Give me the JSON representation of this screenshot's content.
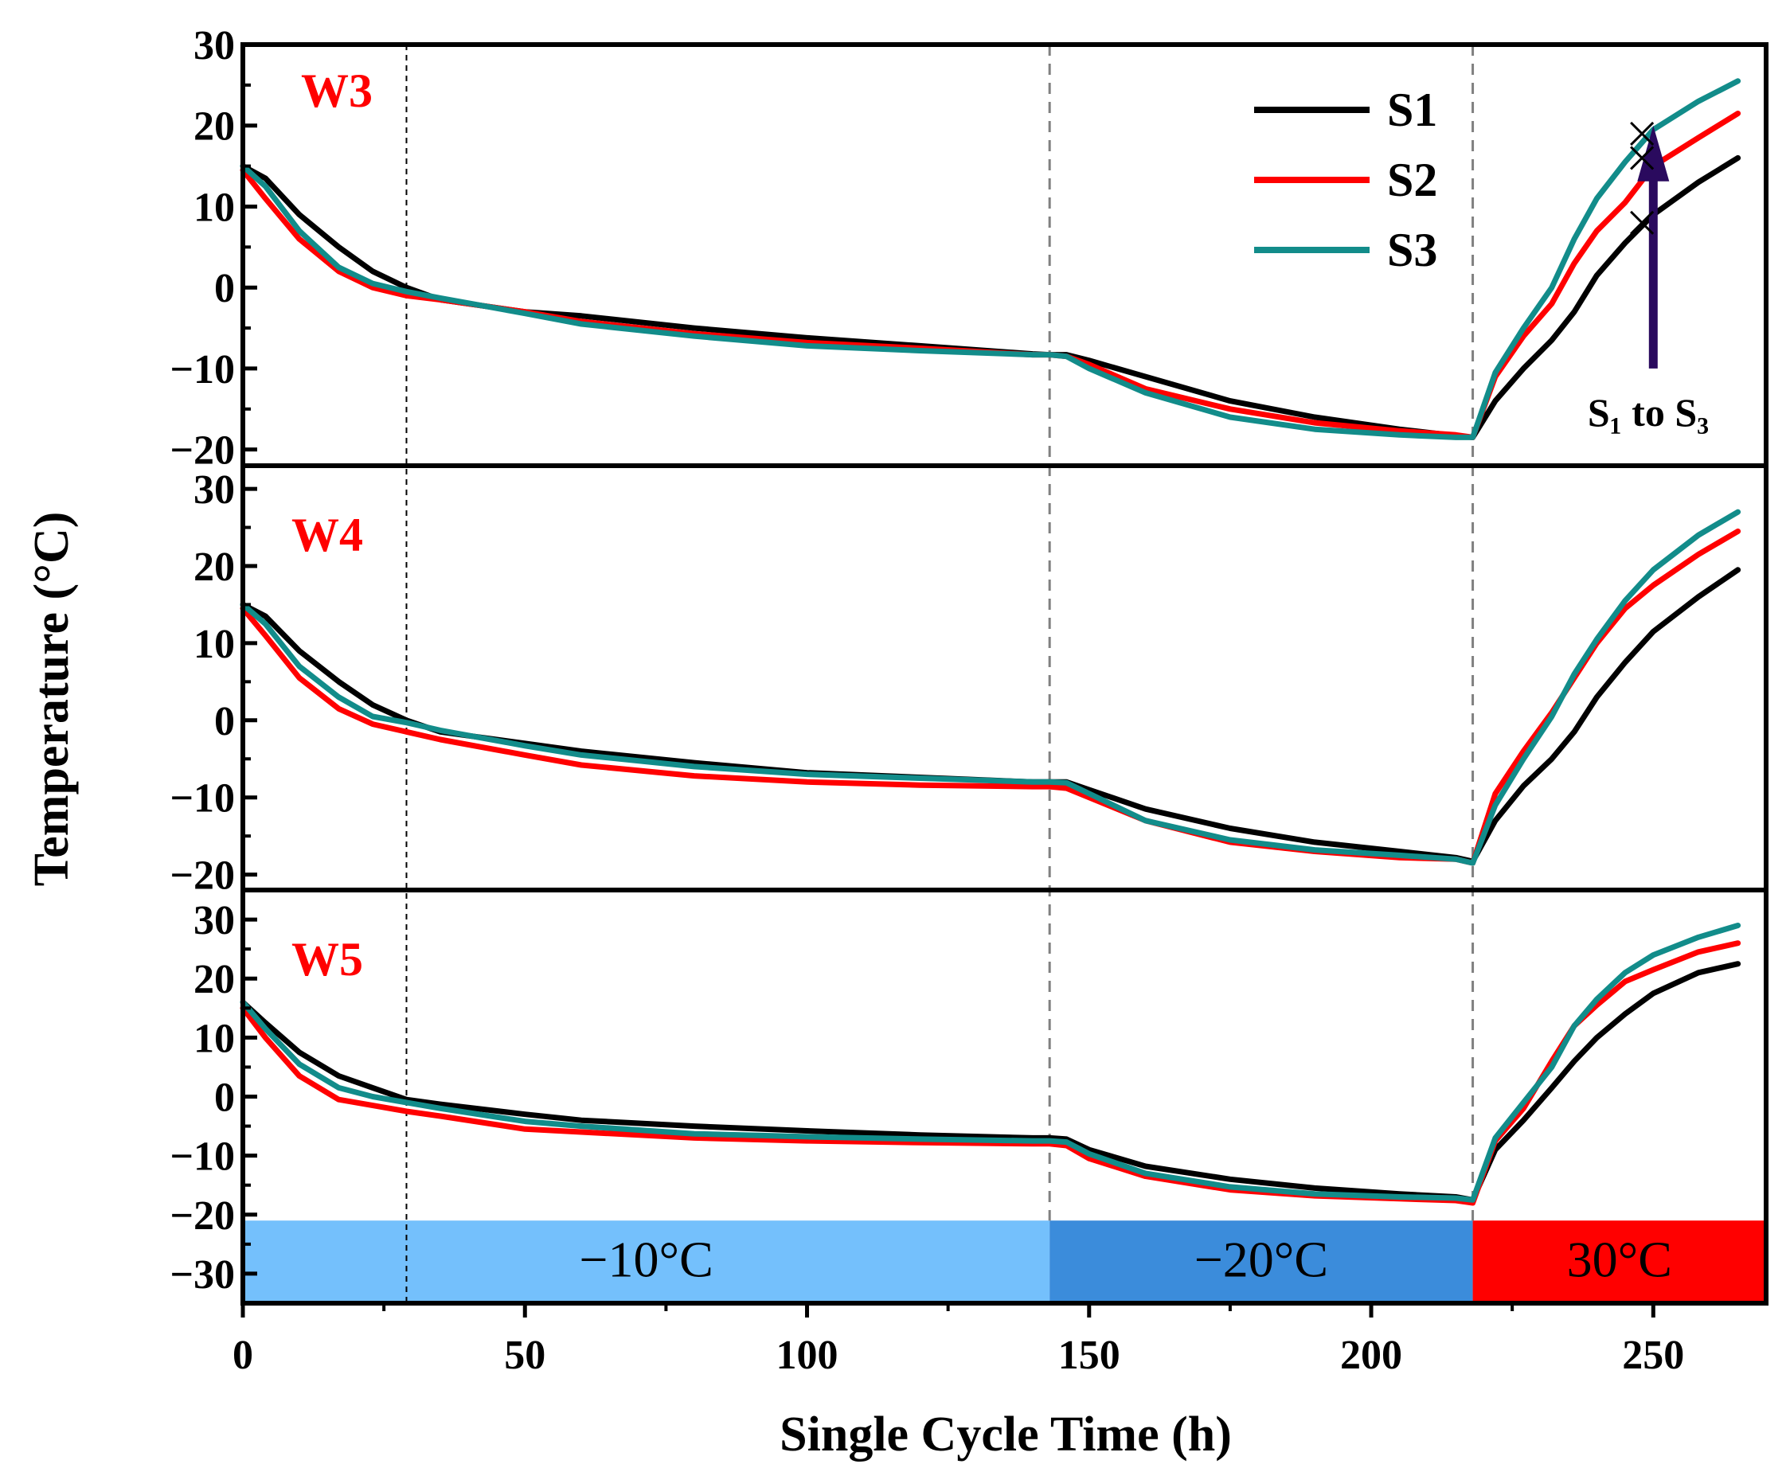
{
  "chart_data": {
    "type": "line",
    "xlabel": "Single Cycle Time (h)",
    "ylabel": "Temperature (°C)",
    "xlim": [
      0,
      270
    ],
    "x_ticks": [
      0,
      50,
      100,
      150,
      200,
      250
    ],
    "phase_boundaries": [
      29,
      143,
      218
    ],
    "legend": [
      "S1",
      "S2",
      "S3"
    ],
    "colors": {
      "S1": "#000000",
      "S2": "#ff0000",
      "S3": "#128c8a"
    },
    "bands": [
      {
        "label": "−10°C",
        "from": 0,
        "to": 143,
        "color": "#74c0fc"
      },
      {
        "label": "−20°C",
        "from": 143,
        "to": 218,
        "color": "#3b8cdb"
      },
      {
        "label": "30°C",
        "from": 218,
        "to": 270,
        "color": "#ff0000"
      }
    ],
    "annotation": {
      "text": "S₁ to S₃",
      "x": 250,
      "arrow_from": -10,
      "arrow_to": 20,
      "cross_x": 248,
      "cross_y": [
        8,
        16,
        19
      ]
    },
    "panels": [
      {
        "label": "W3",
        "ylim": [
          -22,
          30
        ],
        "y_ticks": [
          30,
          20,
          10,
          0,
          -10,
          -20
        ],
        "x": [
          0,
          4,
          10,
          17,
          23,
          29,
          35,
          50,
          60,
          80,
          100,
          120,
          140,
          143,
          146,
          150,
          160,
          175,
          190,
          205,
          215,
          218,
          222,
          227,
          232,
          236,
          240,
          245,
          250,
          258,
          265
        ],
        "series": [
          {
            "name": "S1",
            "values": [
              15,
              13.5,
              9,
              5,
              2,
              0,
              -1.5,
              -3,
              -3.5,
              -5,
              -6.2,
              -7.2,
              -8.2,
              -8.3,
              -8.3,
              -9,
              -11,
              -14,
              -16,
              -17.5,
              -18.3,
              -18.5,
              -14,
              -10,
              -6.5,
              -3,
              1.5,
              5.5,
              9,
              13,
              16
            ]
          },
          {
            "name": "S2",
            "values": [
              14.5,
              11,
              6,
              2,
              0,
              -1,
              -1.5,
              -3,
              -4.2,
              -5.7,
              -6.8,
              -7.5,
              -8.3,
              -8.3,
              -8.5,
              -9.5,
              -12.5,
              -15,
              -16.7,
              -17.7,
              -18.2,
              -18.5,
              -11,
              -6,
              -2,
              3,
              7,
              10.5,
              15,
              18.5,
              21.5
            ]
          },
          {
            "name": "S3",
            "values": [
              15,
              12.5,
              7,
              2.5,
              0.5,
              -0.5,
              -1.3,
              -3.2,
              -4.5,
              -6,
              -7.2,
              -7.8,
              -8.3,
              -8.3,
              -8.5,
              -10,
              -13,
              -16,
              -17.5,
              -18.2,
              -18.5,
              -18.5,
              -10.5,
              -5,
              0,
              6,
              11,
              15.5,
              19.5,
              23,
              25.5
            ]
          }
        ]
      },
      {
        "label": "W4",
        "ylim": [
          -22,
          33
        ],
        "y_ticks": [
          30,
          20,
          10,
          0,
          -10,
          -20
        ],
        "x": [
          0,
          4,
          10,
          17,
          23,
          29,
          35,
          50,
          60,
          80,
          100,
          120,
          140,
          143,
          146,
          150,
          160,
          175,
          190,
          205,
          215,
          218,
          222,
          227,
          232,
          236,
          240,
          245,
          250,
          258,
          265
        ],
        "series": [
          {
            "name": "S1",
            "values": [
              15,
              13.5,
              9,
              5,
              2,
              0,
              -1.5,
              -3,
              -4,
              -5.5,
              -6.8,
              -7.4,
              -8,
              -8,
              -8,
              -9,
              -11.5,
              -14,
              -15.8,
              -17,
              -17.8,
              -18.3,
              -13,
              -8.5,
              -5,
              -1.5,
              3,
              7.5,
              11.5,
              16,
              19.5
            ]
          },
          {
            "name": "S2",
            "values": [
              14.5,
              11,
              5.5,
              1.5,
              -0.5,
              -1.5,
              -2.5,
              -4.5,
              -5.8,
              -7.2,
              -8,
              -8.4,
              -8.6,
              -8.6,
              -8.8,
              -10,
              -13,
              -15.8,
              -17,
              -17.8,
              -18,
              -18.5,
              -9.5,
              -4,
              1,
              5.5,
              10,
              14.5,
              17.5,
              21.5,
              24.5
            ]
          },
          {
            "name": "S3",
            "values": [
              15,
              12.5,
              7,
              3,
              0.5,
              -0.3,
              -1.3,
              -3.3,
              -4.5,
              -6,
              -7,
              -7.5,
              -8,
              -8,
              -8.1,
              -9.5,
              -13,
              -15.5,
              -16.8,
              -17.5,
              -18,
              -18.5,
              -11,
              -5,
              0.5,
              6,
              10.5,
              15.5,
              19.5,
              24,
              27
            ]
          }
        ]
      },
      {
        "label": "W5",
        "ylim": [
          -35,
          35
        ],
        "y_ticks": [
          30,
          20,
          10,
          0,
          -10,
          -20,
          -30
        ],
        "x": [
          0,
          4,
          10,
          17,
          23,
          29,
          35,
          50,
          60,
          80,
          100,
          120,
          140,
          143,
          146,
          150,
          160,
          175,
          190,
          205,
          215,
          218,
          222,
          227,
          232,
          236,
          240,
          245,
          250,
          258,
          265
        ],
        "series": [
          {
            "name": "S1",
            "values": [
              16,
              12.5,
              7.5,
              3.5,
              1.5,
              -0.5,
              -1.3,
              -3,
              -4,
              -5,
              -5.8,
              -6.5,
              -7,
              -7,
              -7.2,
              -9,
              -11.8,
              -14,
              -15.5,
              -16.5,
              -17,
              -17.5,
              -9,
              -4,
              1.5,
              6,
              10,
              14,
              17.5,
              21,
              22.5
            ]
          },
          {
            "name": "S2",
            "values": [
              15,
              10,
              3.5,
              -0.5,
              -1.5,
              -2.5,
              -3.3,
              -5.5,
              -6,
              -7,
              -7.5,
              -7.8,
              -8,
              -8,
              -8.3,
              -10.5,
              -13.5,
              -15.8,
              -16.8,
              -17.3,
              -17.6,
              -18,
              -7.5,
              -2,
              6,
              12,
              15.5,
              19.5,
              21.5,
              24.5,
              26
            ]
          },
          {
            "name": "S3",
            "values": [
              16,
              11.5,
              5.5,
              1.5,
              0,
              -1,
              -2,
              -4.2,
              -5,
              -6.3,
              -6.8,
              -7.2,
              -7.5,
              -7.5,
              -7.7,
              -9.7,
              -13,
              -15.3,
              -16.5,
              -17,
              -17.2,
              -17.5,
              -7,
              -1,
              5,
              12,
              16.5,
              21,
              24,
              27,
              29
            ]
          }
        ]
      }
    ]
  }
}
